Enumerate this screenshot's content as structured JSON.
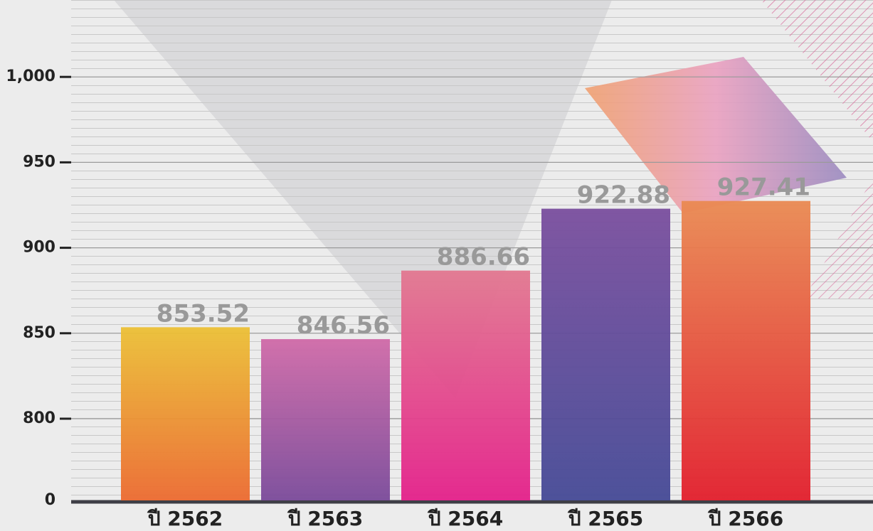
{
  "chart_data": {
    "type": "bar",
    "categories": [
      "ปี 2562",
      "ปี 2563",
      "ปี 2564",
      "ปี 2565",
      "ปี 2566"
    ],
    "values": [
      853.52,
      846.56,
      886.66,
      922.88,
      927.41
    ],
    "value_labels": [
      "853.52",
      "846.56",
      "886.66",
      "922.88",
      "927.41"
    ],
    "colors": [
      [
        "#ecc035",
        "#ec6a30"
      ],
      [
        "#d06aa8",
        "#7a4a9a"
      ],
      [
        "#e27890",
        "#e4208a"
      ],
      [
        "#7a4e9e",
        "#454a96"
      ],
      [
        "#ea8a52",
        "#e21e2c"
      ]
    ],
    "ylim": [
      0,
      1045
    ],
    "axis_break": [
      0,
      800
    ],
    "yticks": [
      0,
      800,
      850,
      900,
      950,
      {
        "value": 1000,
        "label": "1,000"
      }
    ],
    "grid": true
  }
}
